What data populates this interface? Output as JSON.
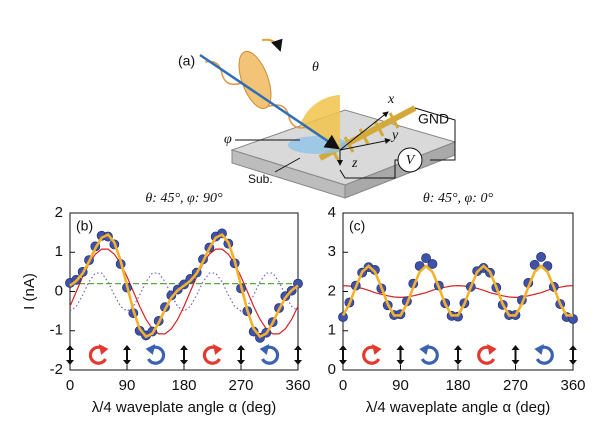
{
  "schematic": {
    "label": "(a)",
    "theta": "θ",
    "x_axis": "x",
    "gnd": "GND",
    "y_axis": "y",
    "phi": "φ",
    "z_axis": "z",
    "meter": "V",
    "substrate": "Sub."
  },
  "chart_data": [
    {
      "type": "line",
      "panel": "(b)",
      "title": "θ: 45°, φ: 90°",
      "y_label": "I (nA)",
      "x_label": "λ/4 waveplate angle α (deg)",
      "xlim": [
        0,
        360
      ],
      "xticks": [
        0,
        90,
        180,
        270,
        360
      ],
      "ylim": [
        -2,
        2
      ],
      "yticks": [
        -2,
        -1,
        0,
        1,
        2
      ],
      "x": [
        0,
        10,
        20,
        30,
        40,
        50,
        60,
        70,
        80,
        90,
        100,
        110,
        120,
        130,
        140,
        150,
        160,
        170,
        180,
        190,
        200,
        210,
        220,
        230,
        240,
        250,
        260,
        270,
        280,
        290,
        300,
        310,
        320,
        330,
        340,
        350,
        360
      ],
      "series": [
        {
          "type": "line",
          "style": "dotted",
          "color": "#7b5cc8",
          "values": [
            -0.5,
            -0.38,
            -0.09,
            0.25,
            0.47,
            0.47,
            0.25,
            -0.09,
            -0.38,
            -0.5,
            -0.38,
            -0.09,
            0.25,
            0.47,
            0.47,
            0.25,
            -0.09,
            -0.38,
            -0.5,
            -0.38,
            -0.09,
            0.25,
            0.47,
            0.47,
            0.25,
            -0.09,
            -0.38,
            -0.5,
            -0.38,
            -0.09,
            0.25,
            0.47,
            0.47,
            0.25,
            -0.09,
            -0.38,
            -0.5
          ]
        },
        {
          "type": "line",
          "style": "dashed",
          "color": "#5aa842",
          "values": [
            0.2,
            0.2,
            0.2,
            0.2,
            0.2,
            0.2,
            0.2,
            0.2,
            0.2,
            0.2,
            0.2,
            0.2,
            0.2,
            0.2,
            0.2,
            0.2,
            0.2,
            0.2,
            0.2,
            0.2,
            0.2,
            0.2,
            0.2,
            0.2,
            0.2,
            0.2,
            0.2,
            0.2,
            0.2,
            0.2,
            0.2,
            0.2,
            0.2,
            0.2,
            0.2,
            0.2,
            0.2
          ]
        },
        {
          "type": "line",
          "style": "solid",
          "color": "#d62222",
          "values": [
            -0.38,
            0,
            0.38,
            0.71,
            0.95,
            1.08,
            1.08,
            0.95,
            0.71,
            0.38,
            0,
            -0.38,
            -0.71,
            -0.95,
            -1.08,
            -1.08,
            -0.95,
            -0.71,
            -0.38,
            0,
            0.38,
            0.71,
            0.95,
            1.08,
            1.08,
            0.95,
            0.71,
            0.38,
            0,
            -0.38,
            -0.71,
            -0.95,
            -1.08,
            -1.08,
            -0.95,
            -0.71,
            -0.38
          ]
        },
        {
          "type": "scatter",
          "color": "#3f51a8",
          "values": [
            0.22,
            0.3,
            0.5,
            0.8,
            1.15,
            1.42,
            1.4,
            1.2,
            0.7,
            0.1,
            -0.55,
            -1.0,
            -1.12,
            -1.02,
            -0.75,
            -0.4,
            -0.1,
            0.05,
            0.18,
            0.32,
            0.48,
            0.82,
            1.12,
            1.4,
            1.48,
            1.22,
            0.72,
            0.08,
            -0.5,
            -1.02,
            -1.18,
            -1.05,
            -0.78,
            -0.42,
            -0.12,
            0.02,
            0.2
          ]
        },
        {
          "type": "line",
          "style": "thick",
          "color": "#f2b22c",
          "values": [
            0.15,
            0.27,
            0.46,
            0.76,
            1.1,
            1.37,
            1.45,
            1.25,
            0.78,
            0.15,
            -0.48,
            -0.95,
            -1.15,
            -1.07,
            -0.8,
            -0.46,
            -0.16,
            0.03,
            0.15,
            0.27,
            0.46,
            0.76,
            1.1,
            1.37,
            1.45,
            1.25,
            0.78,
            0.15,
            -0.48,
            -0.95,
            -1.15,
            -1.07,
            -0.8,
            -0.46,
            -0.16,
            0.03,
            0.15
          ]
        }
      ]
    },
    {
      "type": "line",
      "panel": "(c)",
      "title": "θ: 45°, φ: 0°",
      "x_label": "λ/4 waveplate angle α (deg)",
      "xlim": [
        0,
        360
      ],
      "xticks": [
        0,
        90,
        180,
        270,
        360
      ],
      "ylim": [
        0,
        4
      ],
      "yticks": [
        0,
        1,
        2,
        3,
        4
      ],
      "x": [
        0,
        10,
        20,
        30,
        40,
        50,
        60,
        70,
        80,
        90,
        100,
        110,
        120,
        130,
        140,
        150,
        160,
        170,
        180,
        190,
        200,
        210,
        220,
        230,
        240,
        250,
        260,
        270,
        280,
        290,
        300,
        310,
        320,
        330,
        340,
        350,
        360
      ],
      "series": [
        {
          "type": "line",
          "style": "solid",
          "color": "#d62222",
          "values": [
            2.15,
            2.14,
            2.11,
            2.08,
            2.03,
            1.97,
            1.93,
            1.89,
            1.86,
            1.85,
            1.86,
            1.89,
            1.93,
            1.97,
            2.03,
            2.08,
            2.11,
            2.14,
            2.15,
            2.14,
            2.11,
            2.08,
            2.03,
            1.97,
            1.93,
            1.89,
            1.86,
            1.85,
            1.86,
            1.89,
            1.93,
            1.97,
            2.03,
            2.08,
            2.11,
            2.14,
            2.15
          ]
        },
        {
          "type": "scatter",
          "color": "#3f51a8",
          "values": [
            1.35,
            1.72,
            2.15,
            2.48,
            2.62,
            2.55,
            2.08,
            1.65,
            1.4,
            1.42,
            1.75,
            2.2,
            2.65,
            2.85,
            2.7,
            2.15,
            1.7,
            1.38,
            1.36,
            1.7,
            2.12,
            2.52,
            2.6,
            2.48,
            2.1,
            1.66,
            1.4,
            1.4,
            1.78,
            2.22,
            2.68,
            2.88,
            2.65,
            2.12,
            1.68,
            1.35,
            1.3
          ]
        },
        {
          "type": "line",
          "style": "thick",
          "color": "#f2b22c",
          "values": [
            1.39,
            1.68,
            2.11,
            2.5,
            2.65,
            2.5,
            2.11,
            1.68,
            1.39,
            1.39,
            1.68,
            2.11,
            2.5,
            2.65,
            2.5,
            2.11,
            1.68,
            1.39,
            1.39,
            1.68,
            2.11,
            2.5,
            2.65,
            2.5,
            2.11,
            1.68,
            1.39,
            1.39,
            1.68,
            2.11,
            2.5,
            2.65,
            2.5,
            2.11,
            1.68,
            1.39,
            1.39
          ]
        }
      ]
    }
  ]
}
